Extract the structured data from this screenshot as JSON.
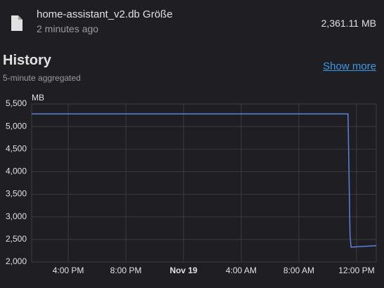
{
  "entity": {
    "name": "home-assistant_v2.db Größe",
    "updated": "2 minutes ago",
    "state": "2,361.11 MB"
  },
  "history": {
    "title": "History",
    "subtitle": "5-minute aggregated",
    "link": "Show more"
  },
  "chart_data": {
    "type": "line",
    "y_label": "MB",
    "x": [
      -10.54,
      11.41,
      11.55,
      11.62,
      13.37
    ],
    "series": [
      {
        "name": "home-assistant_v2.db Größe",
        "color": "#5b82dd",
        "values": [
          5280,
          5280,
          2590,
          2330,
          2361
        ]
      }
    ],
    "xlim": [
      -10.54,
      13.37
    ],
    "xticks": [
      {
        "value": -8,
        "label": "4:00 PM"
      },
      {
        "value": -4,
        "label": "8:00 PM"
      },
      {
        "value": 0,
        "label": "Nov 19",
        "weight": "bold"
      },
      {
        "value": 4,
        "label": "4:00 AM"
      },
      {
        "value": 8,
        "label": "8:00 AM"
      },
      {
        "value": 12,
        "label": "12:00 PM"
      }
    ],
    "ylim": [
      2000,
      5500
    ],
    "yticks": [
      {
        "value": 2000,
        "label": "2,000"
      },
      {
        "value": 2500,
        "label": "2,500"
      },
      {
        "value": 3000,
        "label": "3,000"
      },
      {
        "value": 3500,
        "label": "3,500"
      },
      {
        "value": 4000,
        "label": "4,000"
      },
      {
        "value": 4500,
        "label": "4,500"
      },
      {
        "value": 5000,
        "label": "5,000"
      },
      {
        "value": 5500,
        "label": "5,500"
      }
    ],
    "grid": true
  }
}
